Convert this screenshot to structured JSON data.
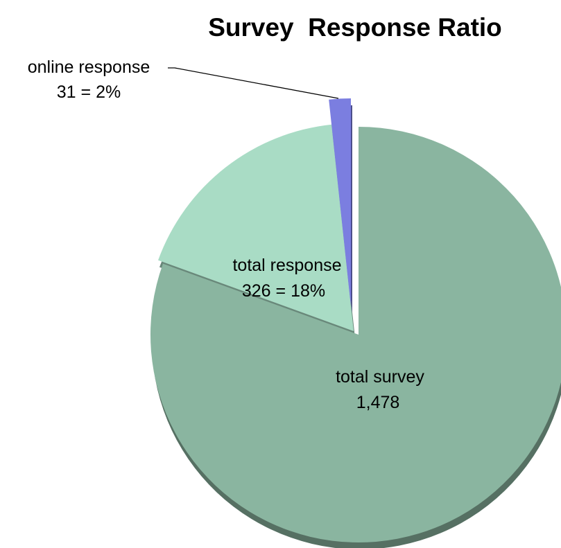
{
  "chart_data": {
    "type": "pie",
    "title": "Survey  Response Ratio",
    "slices": [
      {
        "name": "total survey",
        "value": 1478,
        "value_text": "1,478",
        "color": "#8ab5a0"
      },
      {
        "name": "total response",
        "value": 326,
        "value_text": "326 = 18%",
        "color": "#a9dcc5"
      },
      {
        "name": "online response",
        "value": 31,
        "value_text": "31 = 2%",
        "color": "#7b7ee0"
      }
    ],
    "start": "12 o'clock, clockwise",
    "exploded": true,
    "legend": "none"
  }
}
